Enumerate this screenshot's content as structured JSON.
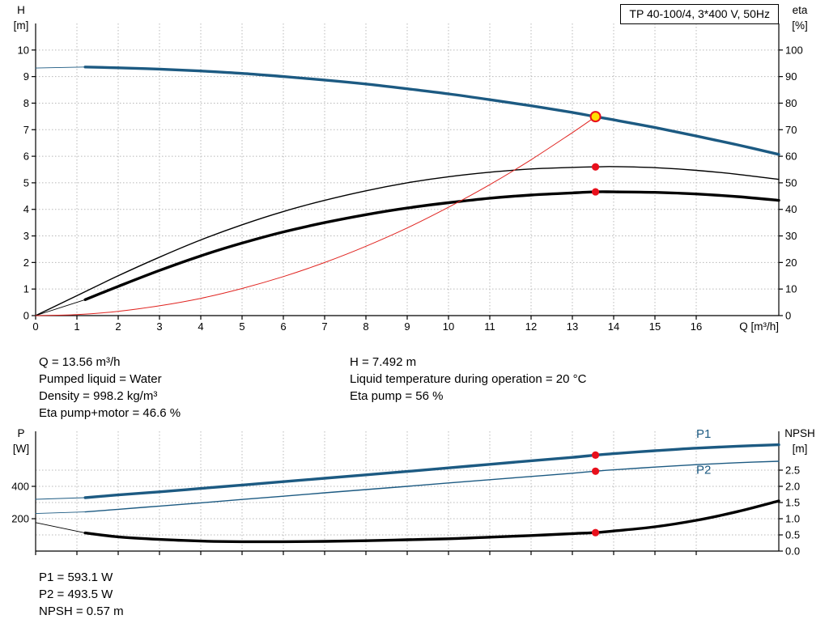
{
  "colors": {
    "curve_blue": "#1c5a82",
    "curve_black": "#000000",
    "curve_red": "#e02420",
    "duty_fill": "#ffdf00",
    "dot_red": "#e8101c",
    "grid": "#b8b8b8",
    "axis": "#000000",
    "text": "#000000"
  },
  "info_top": {
    "left": [
      "Q = 13.56 m³/h",
      "Pumped liquid = Water",
      "Density = 998.2 kg/m³",
      "Eta pump+motor = 46.6 %"
    ],
    "right": [
      "H = 7.492 m",
      "Liquid temperature during operation = 20 °C",
      "Eta pump = 56 %"
    ]
  },
  "info_bottom": [
    "P1 = 593.1 W",
    "P2 = 493.5 W",
    "NPSH = 0.57 m"
  ],
  "chart_data": [
    {
      "type": "line",
      "title": "TP 40-100/4, 3*400 V, 50Hz",
      "xlabel": "Q [m³/h]",
      "x_range": [
        0,
        18
      ],
      "x_ticks": [
        0,
        1,
        2,
        3,
        4,
        5,
        6,
        7,
        8,
        9,
        10,
        11,
        12,
        13,
        14,
        15,
        16
      ],
      "x_tick_labels": true,
      "left_axis": {
        "label": [
          "H",
          "[m]"
        ],
        "range": [
          0,
          11
        ],
        "ticks": [
          0,
          1,
          2,
          3,
          4,
          5,
          6,
          7,
          8,
          9,
          10
        ],
        "grid": true,
        "decimals": 0
      },
      "right_axis": {
        "label": [
          "eta",
          "[%]"
        ],
        "range": [
          0,
          110
        ],
        "ticks": [
          0,
          10,
          20,
          30,
          40,
          50,
          60,
          70,
          80,
          90,
          100
        ],
        "grid": false,
        "decimals": 0
      },
      "series": [
        {
          "name": "head-lead-in",
          "axis": "left",
          "style": "lead",
          "color": "curve_blue",
          "points": [
            [
              0,
              9.32
            ],
            [
              1.2,
              9.36
            ]
          ]
        },
        {
          "name": "head-curve",
          "axis": "left",
          "style": "thick",
          "color": "curve_blue",
          "points": [
            [
              1.2,
              9.36
            ],
            [
              2,
              9.33
            ],
            [
              3,
              9.28
            ],
            [
              4,
              9.21
            ],
            [
              5,
              9.12
            ],
            [
              6,
              9.0
            ],
            [
              7,
              8.87
            ],
            [
              8,
              8.72
            ],
            [
              9,
              8.54
            ],
            [
              10,
              8.35
            ],
            [
              11,
              8.13
            ],
            [
              12,
              7.9
            ],
            [
              13,
              7.65
            ],
            [
              13.56,
              7.49
            ],
            [
              14,
              7.37
            ],
            [
              15,
              7.08
            ],
            [
              16,
              6.76
            ],
            [
              17,
              6.43
            ],
            [
              18,
              6.07
            ]
          ]
        },
        {
          "name": "eta-pump-curve",
          "axis": "right",
          "style": "thin",
          "color": "curve_black",
          "points": [
            [
              0,
              0
            ],
            [
              1,
              7.5
            ],
            [
              2,
              15
            ],
            [
              3,
              22
            ],
            [
              4,
              28.5
            ],
            [
              5,
              34.2
            ],
            [
              6,
              39.2
            ],
            [
              7,
              43.4
            ],
            [
              8,
              47
            ],
            [
              9,
              50
            ],
            [
              10,
              52.3
            ],
            [
              11,
              54
            ],
            [
              12,
              55.2
            ],
            [
              13,
              55.8
            ],
            [
              13.56,
              56
            ],
            [
              14,
              56.1
            ],
            [
              15,
              55.7
            ],
            [
              16,
              54.7
            ],
            [
              17,
              53.2
            ],
            [
              18,
              51.3
            ]
          ]
        },
        {
          "name": "eta-pump-motor-lead-in",
          "axis": "right",
          "style": "lead",
          "color": "curve_black",
          "points": [
            [
              0,
              0
            ],
            [
              1.2,
              6
            ]
          ]
        },
        {
          "name": "eta-pump-motor-curve",
          "axis": "right",
          "style": "thick",
          "color": "curve_black",
          "points": [
            [
              1.2,
              6
            ],
            [
              2,
              11
            ],
            [
              3,
              17
            ],
            [
              4,
              22.5
            ],
            [
              5,
              27.3
            ],
            [
              6,
              31.5
            ],
            [
              7,
              35
            ],
            [
              8,
              38
            ],
            [
              9,
              40.5
            ],
            [
              10,
              42.5
            ],
            [
              11,
              44.2
            ],
            [
              12,
              45.4
            ],
            [
              13,
              46.2
            ],
            [
              13.56,
              46.6
            ],
            [
              14,
              46.6
            ],
            [
              15,
              46.4
            ],
            [
              16,
              45.8
            ],
            [
              17,
              44.8
            ],
            [
              18,
              43.4
            ]
          ]
        },
        {
          "name": "system-curve",
          "axis": "left",
          "style": "hairline",
          "color": "curve_red",
          "points": [
            [
              0,
              0
            ],
            [
              1,
              0.04
            ],
            [
              2,
              0.16
            ],
            [
              3,
              0.37
            ],
            [
              4,
              0.65
            ],
            [
              5,
              1.02
            ],
            [
              6,
              1.47
            ],
            [
              7,
              2.0
            ],
            [
              8,
              2.61
            ],
            [
              9,
              3.3
            ],
            [
              10,
              4.08
            ],
            [
              11,
              4.93
            ],
            [
              12,
              5.87
            ],
            [
              13,
              6.89
            ],
            [
              13.56,
              7.49
            ]
          ]
        }
      ],
      "markers": [
        {
          "kind": "duty",
          "axis": "left",
          "x": 13.56,
          "y": 7.492
        },
        {
          "kind": "dot",
          "axis": "right",
          "x": 13.56,
          "y": 56
        },
        {
          "kind": "dot",
          "axis": "right",
          "x": 13.56,
          "y": 46.6
        }
      ],
      "annotations": []
    },
    {
      "type": "line",
      "title": "",
      "xlabel": "",
      "x_range": [
        0,
        18
      ],
      "x_ticks": [
        0,
        1,
        2,
        3,
        4,
        5,
        6,
        7,
        8,
        9,
        10,
        11,
        12,
        13,
        14,
        15,
        16
      ],
      "x_tick_labels": false,
      "left_axis": {
        "label": [
          "P",
          "[W]"
        ],
        "range": [
          0,
          740
        ],
        "ticks": [
          200,
          400
        ],
        "grid": true,
        "decimals": 0
      },
      "right_axis": {
        "label": [
          "NPSH",
          "[m]"
        ],
        "range": [
          0,
          3.7
        ],
        "ticks": [
          0.0,
          0.5,
          1.0,
          1.5,
          2.0,
          2.5
        ],
        "grid": true,
        "decimals": 1
      },
      "series": [
        {
          "name": "p1-lead-in",
          "axis": "left",
          "style": "lead",
          "color": "curve_blue",
          "points": [
            [
              0,
              320
            ],
            [
              1.2,
              330
            ]
          ]
        },
        {
          "name": "p1-curve",
          "axis": "left",
          "style": "thick",
          "color": "curve_blue",
          "points": [
            [
              1.2,
              330
            ],
            [
              2,
              347
            ],
            [
              3,
              366
            ],
            [
              4,
              387
            ],
            [
              5,
              408
            ],
            [
              6,
              429
            ],
            [
              7,
              450
            ],
            [
              8,
              471
            ],
            [
              9,
              492
            ],
            [
              10,
              514
            ],
            [
              11,
              536
            ],
            [
              12,
              558
            ],
            [
              13,
              579
            ],
            [
              13.56,
              593
            ],
            [
              14,
              602
            ],
            [
              15,
              620
            ],
            [
              16,
              636
            ],
            [
              17,
              648
            ],
            [
              18,
              657
            ]
          ]
        },
        {
          "name": "p2-lead-in",
          "axis": "left",
          "style": "lead",
          "color": "curve_blue",
          "points": [
            [
              0,
              232
            ],
            [
              1.2,
              242
            ]
          ]
        },
        {
          "name": "p2-curve",
          "axis": "left",
          "style": "thin",
          "color": "curve_blue",
          "points": [
            [
              1.2,
              242
            ],
            [
              2,
              258
            ],
            [
              3,
              278
            ],
            [
              4,
              298
            ],
            [
              5,
              319
            ],
            [
              6,
              339
            ],
            [
              7,
              360
            ],
            [
              8,
              380
            ],
            [
              9,
              400
            ],
            [
              10,
              421
            ],
            [
              11,
              441
            ],
            [
              12,
              461
            ],
            [
              13,
              481
            ],
            [
              13.56,
              493.5
            ],
            [
              14,
              502
            ],
            [
              15,
              519
            ],
            [
              16,
              534
            ],
            [
              17,
              546
            ],
            [
              18,
              555
            ]
          ]
        },
        {
          "name": "npsh-lead-in",
          "axis": "right",
          "style": "lead",
          "color": "curve_black",
          "points": [
            [
              0,
              0.88
            ],
            [
              1.2,
              0.56
            ]
          ]
        },
        {
          "name": "npsh-curve",
          "axis": "right",
          "style": "thick",
          "color": "curve_black",
          "points": [
            [
              1.2,
              0.56
            ],
            [
              2,
              0.44
            ],
            [
              3,
              0.36
            ],
            [
              4,
              0.31
            ],
            [
              5,
              0.29
            ],
            [
              6,
              0.29
            ],
            [
              7,
              0.3
            ],
            [
              8,
              0.32
            ],
            [
              9,
              0.35
            ],
            [
              10,
              0.38
            ],
            [
              11,
              0.43
            ],
            [
              12,
              0.48
            ],
            [
              13,
              0.54
            ],
            [
              13.56,
              0.57
            ],
            [
              14,
              0.62
            ],
            [
              15,
              0.75
            ],
            [
              16,
              0.95
            ],
            [
              17,
              1.22
            ],
            [
              18,
              1.55
            ]
          ]
        }
      ],
      "markers": [
        {
          "kind": "dot",
          "axis": "left",
          "x": 13.56,
          "y": 593.1
        },
        {
          "kind": "dot",
          "axis": "left",
          "x": 13.56,
          "y": 493.5
        },
        {
          "kind": "dot",
          "axis": "right",
          "x": 13.56,
          "y": 0.57
        }
      ],
      "annotations": [
        {
          "text": "P1",
          "x": 16.0,
          "axis": "left",
          "y": 700
        },
        {
          "text": "P2",
          "x": 16.0,
          "axis": "left",
          "y": 478
        }
      ]
    }
  ]
}
